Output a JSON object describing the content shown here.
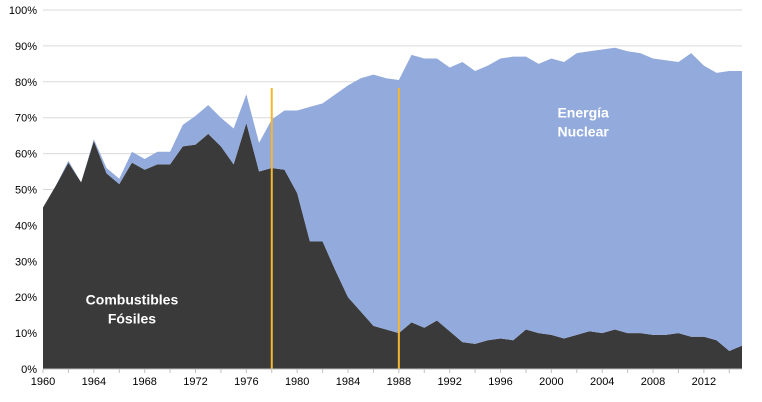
{
  "chart_data": {
    "type": "area",
    "stacked": true,
    "title": "",
    "xlabel": "",
    "ylabel": "",
    "xlim": [
      1960,
      2015
    ],
    "ylim": [
      0,
      100
    ],
    "x_ticks": [
      "1960",
      "1964",
      "1968",
      "1972",
      "1976",
      "1980",
      "1984",
      "1988",
      "1992",
      "1996",
      "2000",
      "2004",
      "2008",
      "2012"
    ],
    "x_tick_values": [
      1960,
      1964,
      1968,
      1972,
      1976,
      1980,
      1984,
      1988,
      1992,
      1996,
      2000,
      2004,
      2008,
      2012
    ],
    "y_ticks": [
      "0%",
      "10%",
      "20%",
      "30%",
      "40%",
      "50%",
      "60%",
      "70%",
      "80%",
      "90%",
      "100%"
    ],
    "y_tick_values": [
      0,
      10,
      20,
      30,
      40,
      50,
      60,
      70,
      80,
      90,
      100
    ],
    "x": [
      1960,
      1961,
      1962,
      1963,
      1964,
      1965,
      1966,
      1967,
      1968,
      1969,
      1970,
      1971,
      1972,
      1973,
      1974,
      1975,
      1976,
      1977,
      1978,
      1979,
      1980,
      1981,
      1982,
      1983,
      1984,
      1985,
      1986,
      1987,
      1988,
      1989,
      1990,
      1991,
      1992,
      1993,
      1994,
      1995,
      1996,
      1997,
      1998,
      1999,
      2000,
      2001,
      2002,
      2003,
      2004,
      2005,
      2006,
      2007,
      2008,
      2009,
      2010,
      2011,
      2012,
      2013,
      2014,
      2015
    ],
    "series": [
      {
        "name": "Combustibles Fósiles",
        "color": "#3a3a3a",
        "values": [
          45,
          51,
          57.5,
          52,
          63.5,
          54.5,
          51.5,
          57.5,
          55.5,
          57,
          57,
          62,
          62.5,
          65.5,
          62,
          57,
          68.5,
          55,
          56,
          55.5,
          49,
          35.5,
          35.5,
          27.5,
          20,
          16,
          12,
          11,
          10,
          13,
          11.5,
          13.5,
          10.5,
          7.5,
          7,
          8,
          8.5,
          8,
          11,
          10,
          9.5,
          8.5,
          9.5,
          10.5,
          10,
          11,
          10,
          10,
          9.5,
          9.5,
          10,
          9,
          9,
          8,
          5,
          6.5
        ]
      },
      {
        "name": "Energía Nuclear",
        "color": "#92aadc",
        "values": [
          0,
          0,
          0.5,
          0,
          0.5,
          1.5,
          1.5,
          3,
          3,
          3.5,
          3.5,
          6,
          8,
          8,
          8,
          10,
          8,
          8,
          13.5,
          16.5,
          23,
          37.5,
          38.5,
          49,
          59,
          65,
          70,
          70,
          70.5,
          74.5,
          75,
          73,
          73.5,
          78,
          76,
          76.5,
          78,
          79,
          76,
          75,
          77,
          77,
          78.5,
          78,
          79,
          78.5,
          78.5,
          78,
          77,
          76.5,
          75.5,
          79,
          75.5,
          74.5,
          78,
          76.5
        ]
      }
    ],
    "markers": [
      {
        "x": 1978,
        "color": "#f5b731"
      },
      {
        "x": 1988,
        "color": "#f5b731"
      }
    ],
    "annotations": [
      {
        "text_lines": [
          "Energía",
          "Nuclear"
        ],
        "color": "#ffffff",
        "anchor_x": 2002.5,
        "anchor_y": 70
      },
      {
        "text_lines": [
          "Combustibles",
          "Fósiles"
        ],
        "color": "#ffffff",
        "anchor_x": 1967,
        "anchor_y": 18
      }
    ],
    "grid": "horizontal",
    "legend": "none"
  }
}
